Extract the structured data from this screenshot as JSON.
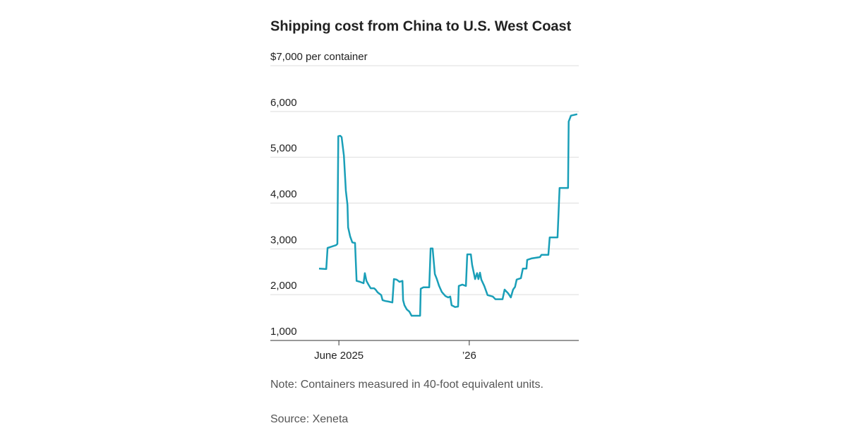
{
  "chart_data": {
    "type": "line",
    "title": "Shipping cost from China to U.S. West Coast",
    "note": "Note: Containers measured in 40-foot equivalent units.",
    "source": "Source: Xeneta",
    "color": "#1a9fb8",
    "grid": true,
    "xlim": [
      2025.11,
      2026.49
    ],
    "xticks": [
      {
        "value": 2025.4167,
        "label": "June 2025"
      },
      {
        "value": 2026,
        "label": "’26"
      }
    ],
    "ylim": [
      1000,
      7000
    ],
    "yticks": [
      {
        "value": 1000,
        "label": "1,000"
      },
      {
        "value": 2000,
        "label": "2,000"
      },
      {
        "value": 3000,
        "label": "3,000"
      },
      {
        "value": 4000,
        "label": "4,000"
      },
      {
        "value": 5000,
        "label": "5,000"
      },
      {
        "value": 6000,
        "label": "6,000"
      },
      {
        "value": 7000,
        "label": "$7,000 per container"
      }
    ],
    "x": [
      2025.328,
      2025.36,
      2025.366,
      2025.385,
      2025.404,
      2025.41,
      2025.414,
      2025.423,
      2025.429,
      2025.439,
      2025.448,
      2025.455,
      2025.458,
      2025.467,
      2025.477,
      2025.489,
      2025.496,
      2025.511,
      2025.527,
      2025.533,
      2025.54,
      2025.549,
      2025.559,
      2025.574,
      2025.581,
      2025.59,
      2025.606,
      2025.612,
      2025.625,
      2025.638,
      2025.656,
      2025.663,
      2025.675,
      2025.688,
      2025.701,
      2025.704,
      2025.71,
      2025.72,
      2025.732,
      2025.742,
      2025.764,
      2025.78,
      2025.783,
      2025.795,
      2025.821,
      2025.827,
      2025.836,
      2025.846,
      2025.855,
      2025.865,
      2025.877,
      2025.893,
      2025.906,
      2025.915,
      2025.921,
      2025.937,
      2025.95,
      2025.953,
      2025.969,
      2025.985,
      2025.991,
      2026.007,
      2026.013,
      2026.026,
      2026.035,
      2026.041,
      2026.048,
      2026.054,
      2026.067,
      2026.082,
      2026.105,
      2026.117,
      2026.149,
      2026.158,
      2026.174,
      2026.186,
      2026.196,
      2026.205,
      2026.212,
      2026.231,
      2026.24,
      2026.256,
      2026.259,
      2026.278,
      2026.316,
      2026.323,
      2026.354,
      2026.36,
      2026.395,
      2026.404,
      2026.442,
      2026.445,
      2026.455,
      2026.483
    ],
    "values": [
      2570,
      2560,
      3020,
      3050,
      3080,
      3110,
      5460,
      5470,
      5440,
      5040,
      4270,
      3960,
      3470,
      3270,
      3140,
      3130,
      2300,
      2280,
      2250,
      2470,
      2300,
      2220,
      2140,
      2140,
      2110,
      2050,
      1990,
      1880,
      1860,
      1850,
      1830,
      2340,
      2330,
      2280,
      2300,
      1880,
      1770,
      1680,
      1630,
      1540,
      1540,
      1540,
      2130,
      2160,
      2160,
      3010,
      3010,
      2450,
      2340,
      2190,
      2060,
      1970,
      1940,
      1960,
      1770,
      1730,
      1740,
      2190,
      2220,
      2190,
      2880,
      2880,
      2650,
      2340,
      2470,
      2340,
      2480,
      2330,
      2190,
      1990,
      1960,
      1900,
      1900,
      2110,
      2030,
      1940,
      2110,
      2170,
      2330,
      2360,
      2570,
      2570,
      2760,
      2790,
      2820,
      2870,
      2870,
      3250,
      3250,
      4330,
      4330,
      5780,
      5910,
      5940
    ]
  }
}
